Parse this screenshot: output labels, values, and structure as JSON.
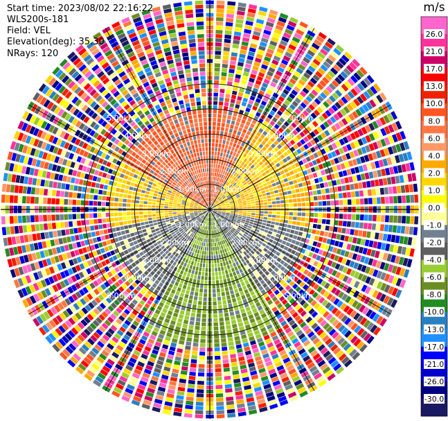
{
  "header": {
    "start_time": "Start time: 2023/08/02 22:16:22",
    "instrument": "WLS200s-181",
    "field": "Field: VEL",
    "elevation": "Elevation(deg): 35.30",
    "nrays": "NRays: 120"
  },
  "colorbar": {
    "unit": "m/s",
    "colors": [
      "#ff66cc",
      "#ff3399",
      "#cc0066",
      "#ff0000",
      "#ee2200",
      "#ff5522",
      "#ff7744",
      "#ff9966",
      "#ffaa00",
      "#ffd700",
      "#ffff00",
      "#ffff99",
      "#708090",
      "#606060",
      "#9acd32",
      "#6b8e23",
      "#228b22",
      "#2a7fbf",
      "#1e90ff",
      "#0000ff",
      "#0000cd",
      "#000080",
      "#1a1a60"
    ],
    "tick_labels": [
      "26.0",
      "21.0",
      "17.0",
      "13.0",
      "10.0",
      "8.0",
      "6.0",
      "4.0",
      "2.0",
      "1.0",
      "0.0",
      "-1.0",
      "-2.0",
      "-4.0",
      "-6.0",
      "-8.0",
      "-10.0",
      "-13.0",
      "-17.0",
      "-21.0",
      "-26.0",
      "-30.0"
    ]
  },
  "chart_data": {
    "type": "heatmap",
    "projection": "polar PPI",
    "field": "VEL",
    "units": "m/s",
    "nrays": 120,
    "max_range_km": 5.0,
    "range_ring_labels": [
      "1.00km",
      "2.00km",
      "3.00km",
      "4.00km",
      "5.00km"
    ],
    "range_rings_km": [
      1,
      2,
      3,
      4,
      5
    ],
    "grid": true,
    "sectors": [
      {
        "azimuth_from": 300,
        "azimuth_to": 30,
        "range_to_km": 2.4,
        "dominant_value": 8.0
      },
      {
        "azimuth_from": 30,
        "azimuth_to": 100,
        "range_to_km": 2.4,
        "dominant_value": 2.0
      },
      {
        "azimuth_from": 100,
        "azimuth_to": 260,
        "range_to_km": 2.4,
        "dominant_value": -2.0
      },
      {
        "azimuth_from": 150,
        "azimuth_to": 210,
        "range_to_km": 3.2,
        "dominant_value": -6.0
      },
      {
        "azimuth_from": 260,
        "azimuth_to": 300,
        "range_to_km": 2.4,
        "dominant_value": 2.0
      }
    ]
  }
}
